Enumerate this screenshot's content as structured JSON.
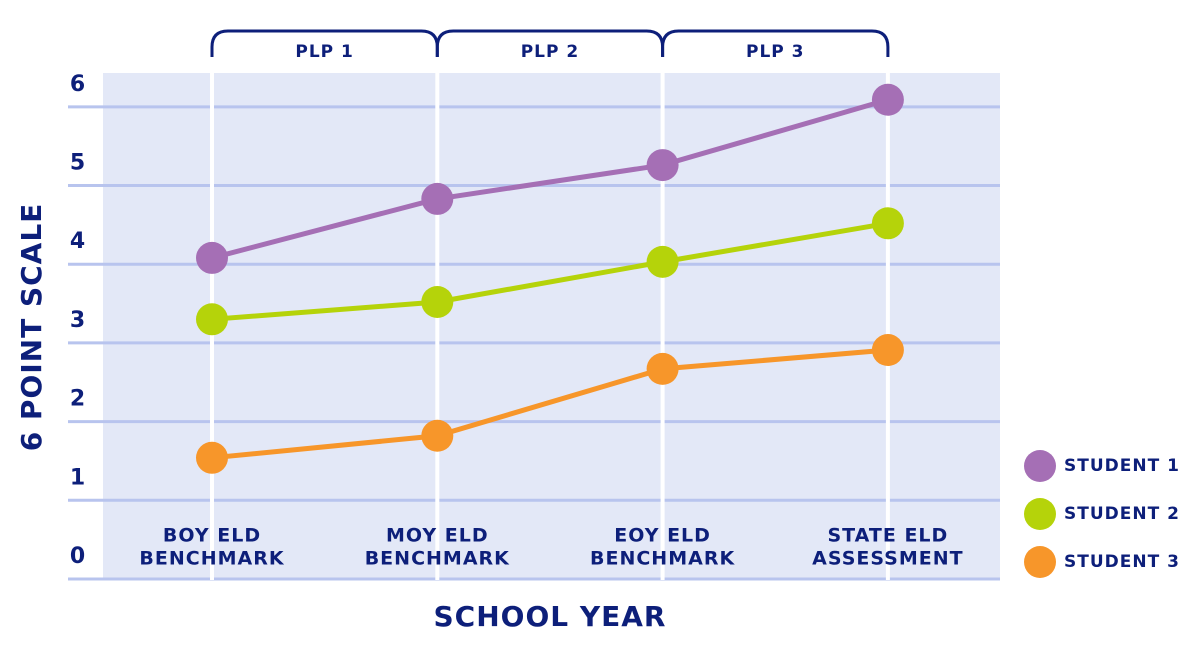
{
  "chart_data": {
    "type": "line",
    "phases": [
      "PLP 1",
      "PLP 2",
      "PLP 3"
    ],
    "categories": [
      [
        "BOY ELD",
        "BENCHMARK"
      ],
      [
        "MOY ELD",
        "BENCHMARK"
      ],
      [
        "EOY ELD",
        "BENCHMARK"
      ],
      [
        "STATE ELD",
        "ASSESSMENT"
      ]
    ],
    "x_label": "SCHOOL YEAR",
    "y_label": "6 POINT SCALE",
    "ylim": [
      0,
      6.43
    ],
    "yticks": [
      0,
      1,
      2,
      3,
      4,
      5,
      6
    ],
    "grid": true,
    "legend": "right",
    "series": [
      {
        "name": "STUDENT 1",
        "color": "#a56fb5",
        "values": [
          4.08,
          4.83,
          5.26,
          6.09
        ]
      },
      {
        "name": "STUDENT 2",
        "color": "#b5d30a",
        "values": [
          3.3,
          3.52,
          4.03,
          4.52
        ]
      },
      {
        "name": "STUDENT 3",
        "color": "#f7962a",
        "values": [
          1.54,
          1.82,
          2.67,
          2.91
        ]
      }
    ]
  }
}
